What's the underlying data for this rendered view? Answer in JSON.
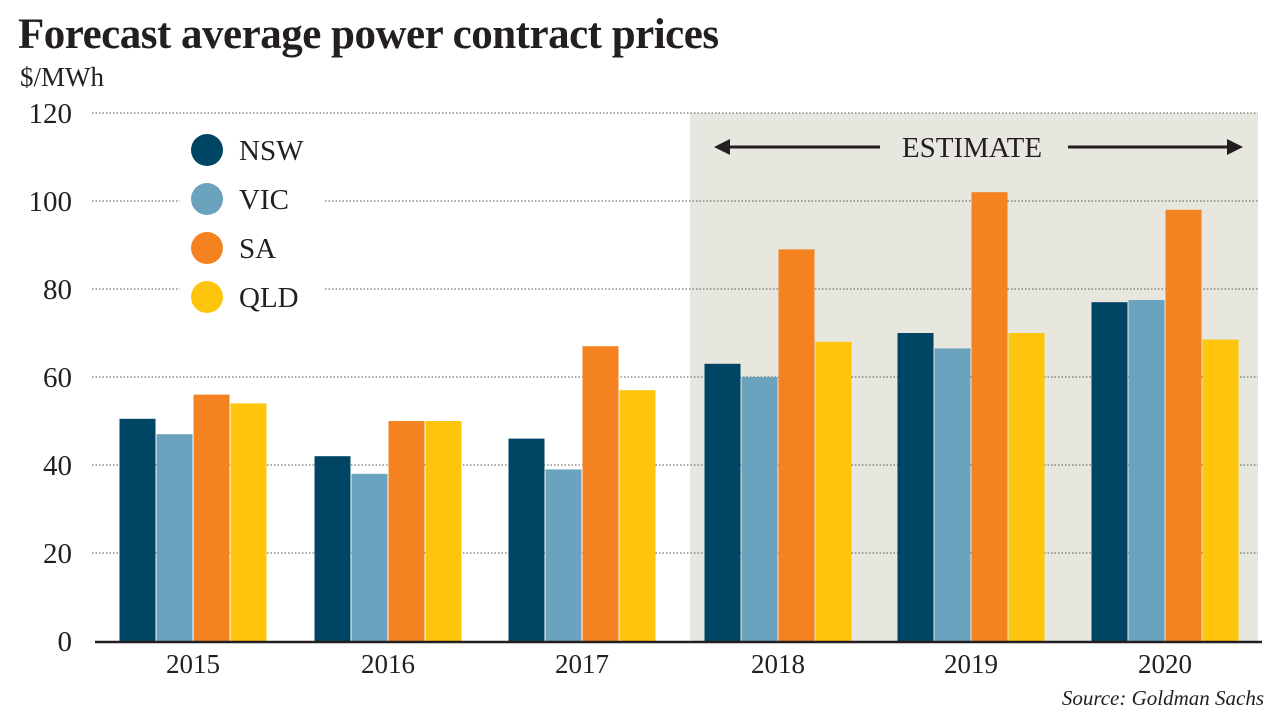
{
  "chart_data": {
    "type": "bar",
    "title": "Forecast average power contract prices",
    "ylabel": "$/MWh",
    "xlabel": "",
    "categories": [
      "2015",
      "2016",
      "2017",
      "2018",
      "2019",
      "2020"
    ],
    "series": [
      {
        "name": "NSW",
        "color": "#004563",
        "values": [
          50.5,
          42,
          46,
          63,
          70,
          77
        ]
      },
      {
        "name": "VIC",
        "color": "#6ba3bf",
        "values": [
          47,
          38,
          39,
          60,
          66.5,
          77.5
        ]
      },
      {
        "name": "SA",
        "color": "#f58220",
        "values": [
          56,
          50,
          67,
          89,
          102,
          98
        ]
      },
      {
        "name": "QLD",
        "color": "#fec50c",
        "values": [
          54,
          50,
          57,
          68,
          70,
          68.5
        ]
      }
    ],
    "ylim": [
      0,
      120
    ],
    "yticks": [
      0,
      20,
      40,
      60,
      80,
      100,
      120
    ],
    "grid": true,
    "legend": "top-left",
    "annotation": {
      "label": "ESTIMATE",
      "range": [
        "2018",
        "2020"
      ],
      "shade_color": "#e7e6df"
    },
    "source": "Source: Goldman Sachs"
  }
}
